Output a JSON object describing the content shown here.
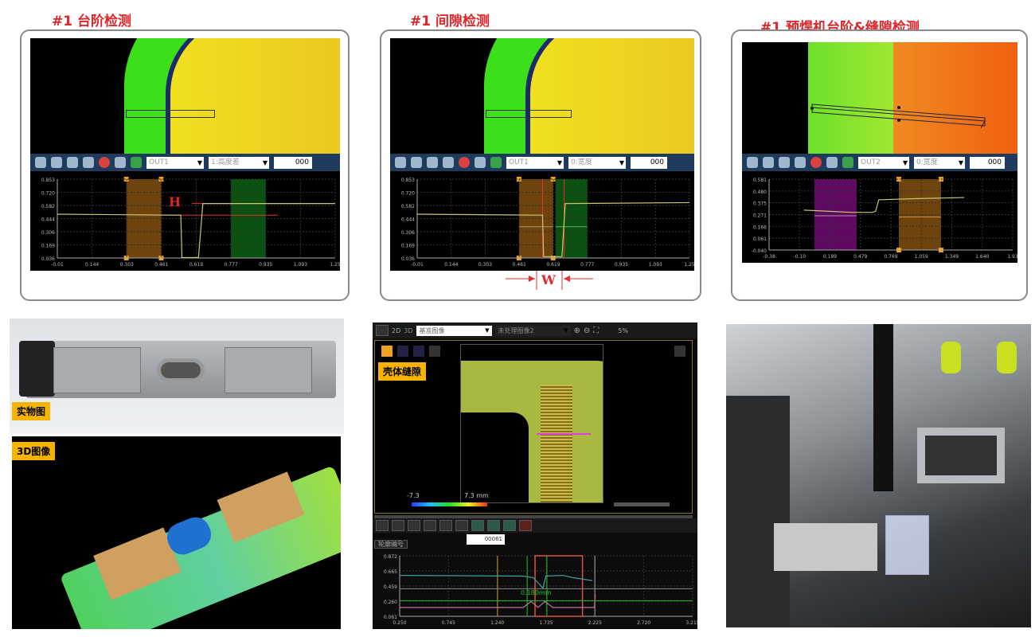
{
  "panels": [
    {
      "title": "#1  台阶检测",
      "toolbar": {
        "out": "OUT1",
        "mode": "1:高度差",
        "value": "000"
      },
      "annotation": "H"
    },
    {
      "title": "#1  间隙检测",
      "toolbar": {
        "out": "OUT1",
        "mode": "0:宽度",
        "value": "000"
      },
      "annotation": "W"
    },
    {
      "title": "#1  预焊机台阶&缝隙检测",
      "toolbar": {
        "out": "OUT2",
        "mode": "0:宽度",
        "value": "000"
      }
    }
  ],
  "photo": {
    "label": "实物图"
  },
  "image3d": {
    "label": "3D图像"
  },
  "software": {
    "view_buttons": [
      "2D",
      "3D"
    ],
    "select1": "基准图像",
    "select2": "未处理图像2",
    "zoom": "5%",
    "tag": "壳体缝隙",
    "color_min": "-7.3",
    "color_max": "7.3 mm",
    "profile_select": "轮廓编号",
    "profile_value": "00061",
    "measure_label": "0.180mm"
  },
  "colors": {
    "title": "#e0262b",
    "toolbar": "#1e3a5c",
    "tag": "#f6b400",
    "orange_region": "#7a4a10",
    "green_region": "#0d5a14",
    "purple_region": "#6a0a6a"
  },
  "chart_data": [
    {
      "type": "line",
      "ylim": [
        0.036,
        0.853
      ],
      "xlim": [
        -0.01,
        1.25
      ],
      "yticks": [
        "0.036",
        "0.169",
        "0.306",
        "0.444",
        "0.582",
        "0.720",
        "0.853"
      ],
      "xticks": [
        "-0.01",
        "0.144",
        "0.303",
        "0.461",
        "0.619",
        "0.777",
        "0.935",
        "1.093",
        "1.25"
      ],
      "series": [
        {
          "color": "#c8c870",
          "points": [
            [
              -0.01,
              0.49
            ],
            [
              0.55,
              0.48
            ],
            [
              0.555,
              0.04
            ],
            [
              0.63,
              0.04
            ],
            [
              0.65,
              0.6
            ],
            [
              1.25,
              0.6
            ]
          ]
        }
      ],
      "regions": [
        {
          "x": [
            0.303,
            0.461
          ],
          "color": "#7a4a10"
        },
        {
          "x": [
            0.777,
            0.935
          ],
          "color": "#0d5a14"
        }
      ],
      "hlines": [
        {
          "y": 0.6,
          "x": [
            0.6,
            1.093
          ],
          "color": "#e03030"
        },
        {
          "y": 0.48,
          "x": [
            0.35,
            0.99
          ],
          "color": "#e03030"
        }
      ]
    },
    {
      "type": "line",
      "ylim": [
        0.036,
        0.853
      ],
      "xlim": [
        -0.01,
        1.25
      ],
      "yticks": [
        "0.036",
        "0.169",
        "0.306",
        "0.444",
        "0.582",
        "0.720",
        "0.853"
      ],
      "xticks": [
        "-0.01",
        "0.144",
        "0.303",
        "0.461",
        "0.619",
        "0.777",
        "0.935",
        "1.093",
        "1.25"
      ],
      "series": [
        {
          "color": "#c8c870",
          "points": [
            [
              -0.01,
              0.49
            ],
            [
              0.57,
              0.48
            ],
            [
              0.575,
              0.05
            ],
            [
              0.66,
              0.05
            ],
            [
              0.675,
              0.6
            ],
            [
              1.25,
              0.61
            ]
          ]
        }
      ],
      "regions": [
        {
          "x": [
            0.461,
            0.619
          ],
          "color": "#7a4a10"
        },
        {
          "x": [
            0.63,
            0.777
          ],
          "color": "#0d5a14"
        }
      ],
      "hlines": [
        {
          "y": 0.36,
          "x": [
            0.461,
            0.619
          ],
          "color": "#a0a060"
        },
        {
          "y": 0.36,
          "x": [
            0.63,
            0.777
          ],
          "color": "#60b060"
        }
      ],
      "vlines": [
        {
          "x": 0.57,
          "color": "#e03030"
        },
        {
          "x": 0.67,
          "color": "#e03030"
        }
      ]
    },
    {
      "type": "line",
      "ylim": [
        -0.04,
        0.581
      ],
      "xlim": [
        -0.38,
        1.93
      ],
      "yticks": [
        "-0.040",
        "0.061",
        "0.166",
        "0.271",
        "0.375",
        "0.480",
        "0.581"
      ],
      "xticks": [
        "-0.38",
        "-0.10",
        "0.189",
        "0.479",
        "0.769",
        "1.059",
        "1.349",
        "1.640",
        "1.93"
      ],
      "series": [
        {
          "color": "#c8c870",
          "points": [
            [
              -0.05,
              0.31
            ],
            [
              0.4,
              0.29
            ],
            [
              0.6,
              0.29
            ],
            [
              0.63,
              0.3
            ],
            [
              0.66,
              0.4
            ],
            [
              1.0,
              0.41
            ],
            [
              1.47,
              0.42
            ]
          ]
        }
      ],
      "regions": [
        {
          "x": [
            0.05,
            0.45
          ],
          "color": "#6a0a6a"
        },
        {
          "x": [
            0.85,
            1.25
          ],
          "color": "#7a4a10"
        }
      ],
      "hlines": [
        {
          "y": 0.26,
          "x": [
            0.05,
            0.45
          ],
          "color": "#c080c0"
        },
        {
          "y": 0.25,
          "x": [
            0.85,
            1.25
          ],
          "color": "#d09040"
        }
      ]
    },
    {
      "type": "line",
      "ylim": [
        0.061,
        0.872
      ],
      "xlim": [
        0.25,
        3.215
      ],
      "yticks": [
        "0.061",
        "0.260",
        "0.459",
        "0.665",
        "0.872"
      ],
      "xticks": [
        "0.250",
        "0.745",
        "1.240",
        "1.735",
        "2.225",
        "2.720",
        "3.215"
      ],
      "series": [
        {
          "color": "#40a0a0",
          "points": [
            [
              0.25,
              0.61
            ],
            [
              1.5,
              0.6
            ],
            [
              1.6,
              0.58
            ],
            [
              1.7,
              0.44
            ],
            [
              1.73,
              0.6
            ],
            [
              1.9,
              0.61
            ],
            [
              2.0,
              0.58
            ],
            [
              2.2,
              0.54
            ]
          ]
        },
        {
          "color": "#c070a0",
          "points": [
            [
              0.25,
              0.18
            ],
            [
              1.5,
              0.18
            ],
            [
              1.58,
              0.26
            ],
            [
              1.65,
              0.18
            ],
            [
              1.72,
              0.26
            ],
            [
              1.8,
              0.18
            ],
            [
              2.22,
              0.18
            ],
            [
              2.23,
              0.35
            ]
          ]
        }
      ],
      "regions": [],
      "hlines": [
        {
          "y": 0.27,
          "x": [
            0.25,
            3.215
          ],
          "color": "#20c020"
        },
        {
          "y": 0.43,
          "x": [
            0.25,
            3.215
          ],
          "color": "#888"
        }
      ],
      "vlines": [
        {
          "x": 1.24,
          "color": "#c0a040"
        },
        {
          "x": 1.54,
          "color": "#20c020"
        },
        {
          "x": 1.74,
          "color": "#20c020"
        },
        {
          "x": 2.225,
          "color": "#aaa"
        }
      ],
      "boxes": [
        {
          "x": [
            1.62,
            2.1
          ],
          "color": "#e05040"
        }
      ]
    }
  ]
}
